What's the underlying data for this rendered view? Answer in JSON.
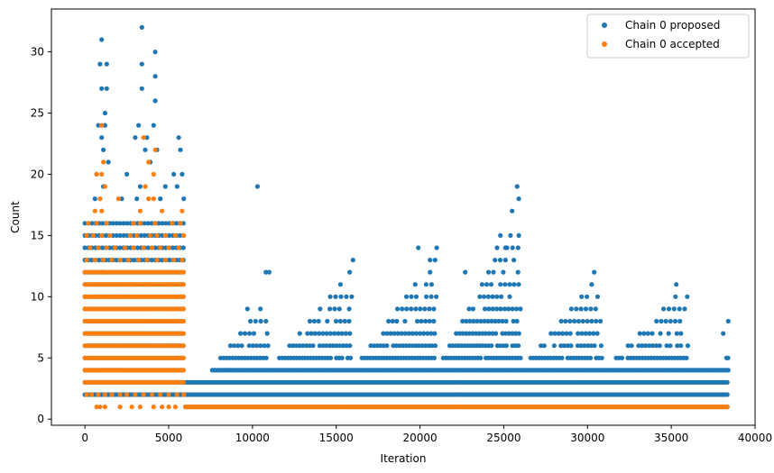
{
  "chart_data": {
    "type": "scatter",
    "xlabel": "Iteration",
    "ylabel": "Count",
    "xlim": [
      -2000,
      40000
    ],
    "ylim": [
      -0.5,
      33.5
    ],
    "xticks": [
      0,
      5000,
      10000,
      15000,
      20000,
      25000,
      30000,
      35000,
      40000
    ],
    "yticks": [
      0,
      5,
      10,
      15,
      20,
      25,
      30
    ],
    "grid": false,
    "legend_position": "top-right",
    "series": [
      {
        "name": "Chain 0 proposed",
        "color": "#1f77b4",
        "x_max": 38400,
        "bands": [
          {
            "x0": 0,
            "x1": 6000,
            "ymin": 2,
            "ymax": 16
          },
          {
            "x0": 6000,
            "x1": 38400,
            "ymin": 1,
            "ymax": 3
          },
          {
            "x0": 7600,
            "x1": 38400,
            "ymin": 4,
            "ymax": 4
          }
        ],
        "waves": [
          {
            "x0": 7500,
            "x1": 11000,
            "peak": 9
          },
          {
            "x0": 11000,
            "x1": 16000,
            "peak": 11
          },
          {
            "x0": 16000,
            "x1": 21000,
            "peak": 12
          },
          {
            "x0": 21000,
            "x1": 26000,
            "peak": 15
          },
          {
            "x0": 26000,
            "x1": 31000,
            "peak": 11
          },
          {
            "x0": 31000,
            "x1": 36000,
            "peak": 10
          },
          {
            "x0": 36000,
            "x1": 38400,
            "peak": 5
          }
        ],
        "outliers": [
          [
            1000,
            31
          ],
          [
            3400,
            32
          ],
          [
            4200,
            30
          ],
          [
            3400,
            29
          ],
          [
            1300,
            29
          ],
          [
            900,
            29
          ],
          [
            4200,
            28
          ],
          [
            1000,
            27
          ],
          [
            1300,
            27
          ],
          [
            3400,
            27
          ],
          [
            4200,
            26
          ],
          [
            1200,
            25
          ],
          [
            800,
            24
          ],
          [
            1200,
            24
          ],
          [
            3200,
            24
          ],
          [
            4100,
            24
          ],
          [
            1000,
            23
          ],
          [
            3000,
            23
          ],
          [
            3700,
            23
          ],
          [
            5600,
            23
          ],
          [
            1100,
            22
          ],
          [
            3600,
            22
          ],
          [
            4300,
            22
          ],
          [
            5700,
            22
          ],
          [
            1400,
            21
          ],
          [
            3900,
            21
          ],
          [
            700,
            20
          ],
          [
            2500,
            20
          ],
          [
            5300,
            20
          ],
          [
            5800,
            20
          ],
          [
            1100,
            19
          ],
          [
            3300,
            19
          ],
          [
            4800,
            19
          ],
          [
            5500,
            19
          ],
          [
            600,
            18
          ],
          [
            2200,
            18
          ],
          [
            3100,
            18
          ],
          [
            4500,
            18
          ],
          [
            5900,
            18
          ],
          [
            10300,
            19
          ],
          [
            25800,
            19
          ],
          [
            25900,
            18
          ],
          [
            25500,
            17
          ],
          [
            24800,
            15
          ],
          [
            25400,
            15
          ],
          [
            25900,
            15
          ],
          [
            16000,
            13
          ],
          [
            15800,
            12
          ],
          [
            19900,
            14
          ],
          [
            21000,
            14
          ],
          [
            24600,
            14
          ],
          [
            20600,
            13
          ],
          [
            22700,
            12
          ],
          [
            25100,
            14
          ],
          [
            30400,
            12
          ],
          [
            35300,
            11
          ],
          [
            10800,
            12
          ],
          [
            11000,
            12
          ],
          [
            38400,
            8
          ],
          [
            38300,
            5
          ],
          [
            38100,
            7
          ],
          [
            9700,
            9
          ],
          [
            20900,
            13
          ],
          [
            25600,
            13
          ]
        ]
      },
      {
        "name": "Chain 0 accepted",
        "color": "#ff7f0e",
        "bands": [
          {
            "x0": 0,
            "x1": 6000,
            "ymin": 3,
            "ymax": 12
          },
          {
            "x0": 6000,
            "x1": 38400,
            "ymin": 1,
            "ymax": 1
          }
        ],
        "points": [
          [
            1000,
            24
          ],
          [
            3500,
            23
          ],
          [
            4200,
            22
          ],
          [
            1100,
            21
          ],
          [
            3800,
            21
          ],
          [
            700,
            20
          ],
          [
            1000,
            20
          ],
          [
            4100,
            20
          ],
          [
            1200,
            19
          ],
          [
            3600,
            19
          ],
          [
            900,
            18
          ],
          [
            2000,
            18
          ],
          [
            3800,
            18
          ],
          [
            4100,
            18
          ],
          [
            600,
            17
          ],
          [
            1000,
            17
          ],
          [
            3300,
            17
          ],
          [
            4600,
            17
          ],
          [
            5800,
            17
          ],
          [
            200,
            16
          ],
          [
            700,
            16
          ],
          [
            1300,
            16
          ],
          [
            2900,
            16
          ],
          [
            3300,
            16
          ],
          [
            4200,
            16
          ],
          [
            5200,
            16
          ],
          [
            5700,
            16
          ],
          [
            100,
            15
          ],
          [
            500,
            15
          ],
          [
            1000,
            15
          ],
          [
            1500,
            15
          ],
          [
            2700,
            15
          ],
          [
            3100,
            15
          ],
          [
            3900,
            15
          ],
          [
            4300,
            15
          ],
          [
            4800,
            15
          ],
          [
            5400,
            15
          ],
          [
            5900,
            15
          ],
          [
            300,
            14
          ],
          [
            800,
            14
          ],
          [
            1300,
            14
          ],
          [
            1800,
            14
          ],
          [
            2400,
            14
          ],
          [
            2900,
            14
          ],
          [
            3500,
            14
          ],
          [
            4000,
            14
          ],
          [
            4500,
            14
          ],
          [
            5000,
            14
          ],
          [
            5600,
            14
          ],
          [
            100,
            13
          ],
          [
            600,
            13
          ],
          [
            1100,
            13
          ],
          [
            1600,
            13
          ],
          [
            2100,
            13
          ],
          [
            2600,
            13
          ],
          [
            3200,
            13
          ],
          [
            3700,
            13
          ],
          [
            4300,
            13
          ],
          [
            4800,
            13
          ],
          [
            5300,
            13
          ],
          [
            5800,
            13
          ],
          [
            100,
            2
          ],
          [
            400,
            2
          ],
          [
            800,
            2
          ],
          [
            1200,
            2
          ],
          [
            1600,
            2
          ],
          [
            2100,
            2
          ],
          [
            2500,
            2
          ],
          [
            3000,
            2
          ],
          [
            3500,
            2
          ],
          [
            4000,
            2
          ],
          [
            4500,
            2
          ],
          [
            5000,
            2
          ],
          [
            5500,
            2
          ],
          [
            5900,
            2
          ],
          [
            700,
            1
          ],
          [
            900,
            1
          ],
          [
            1200,
            1
          ],
          [
            2100,
            1
          ],
          [
            2800,
            1
          ],
          [
            3300,
            1
          ],
          [
            4100,
            1
          ],
          [
            4600,
            1
          ],
          [
            5000,
            1
          ],
          [
            5400,
            1
          ]
        ]
      }
    ]
  }
}
